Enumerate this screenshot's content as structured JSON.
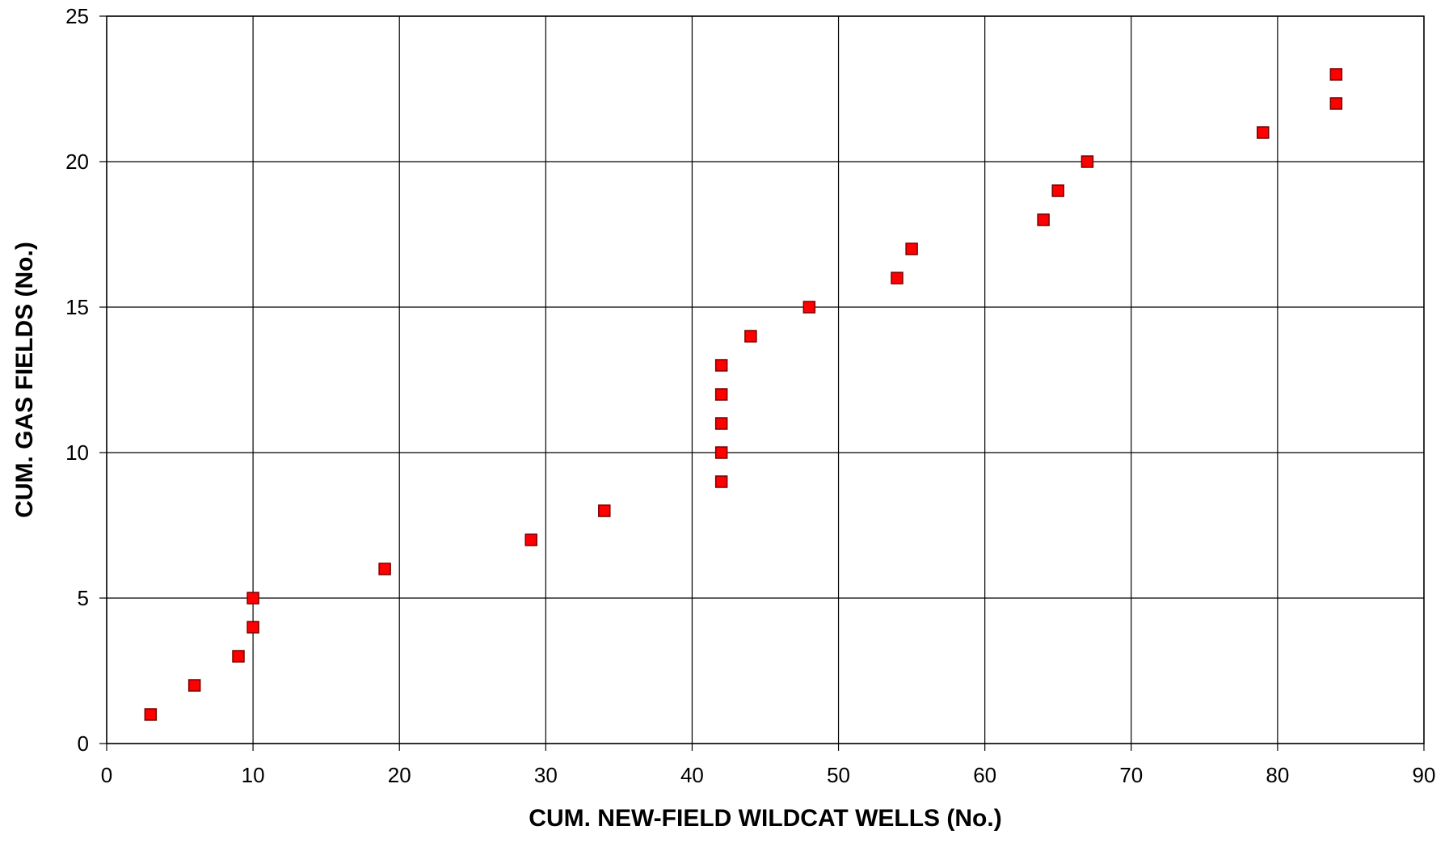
{
  "chart_data": {
    "type": "scatter",
    "title": "",
    "xlabel": "CUM. NEW-FIELD WILDCAT WELLS (No.)",
    "ylabel": "CUM. GAS FIELDS (No.)",
    "xlim": [
      0,
      90
    ],
    "ylim": [
      0,
      25
    ],
    "x_ticks": [
      "0",
      "10",
      "20",
      "30",
      "40",
      "50",
      "60",
      "70",
      "80",
      "90"
    ],
    "y_ticks": [
      "0",
      "5",
      "10",
      "15",
      "20",
      "25"
    ],
    "grid": true,
    "legend": "none",
    "marker": "square",
    "colors": {
      "marker": "#ff0000",
      "marker_edge": "#7a0000",
      "grid": "#000000",
      "axis": "#000000"
    },
    "series": [
      {
        "points": [
          {
            "x": 3,
            "y": 1
          },
          {
            "x": 6,
            "y": 2
          },
          {
            "x": 9,
            "y": 3
          },
          {
            "x": 10,
            "y": 4
          },
          {
            "x": 10,
            "y": 5
          },
          {
            "x": 19,
            "y": 6
          },
          {
            "x": 29,
            "y": 7
          },
          {
            "x": 34,
            "y": 8
          },
          {
            "x": 42,
            "y": 9
          },
          {
            "x": 42,
            "y": 10
          },
          {
            "x": 42,
            "y": 11
          },
          {
            "x": 42,
            "y": 12
          },
          {
            "x": 42,
            "y": 13
          },
          {
            "x": 44,
            "y": 14
          },
          {
            "x": 48,
            "y": 15
          },
          {
            "x": 54,
            "y": 16
          },
          {
            "x": 55,
            "y": 17
          },
          {
            "x": 64,
            "y": 18
          },
          {
            "x": 65,
            "y": 19
          },
          {
            "x": 67,
            "y": 20
          },
          {
            "x": 79,
            "y": 21
          },
          {
            "x": 84,
            "y": 22
          },
          {
            "x": 84,
            "y": 23
          }
        ]
      }
    ]
  }
}
